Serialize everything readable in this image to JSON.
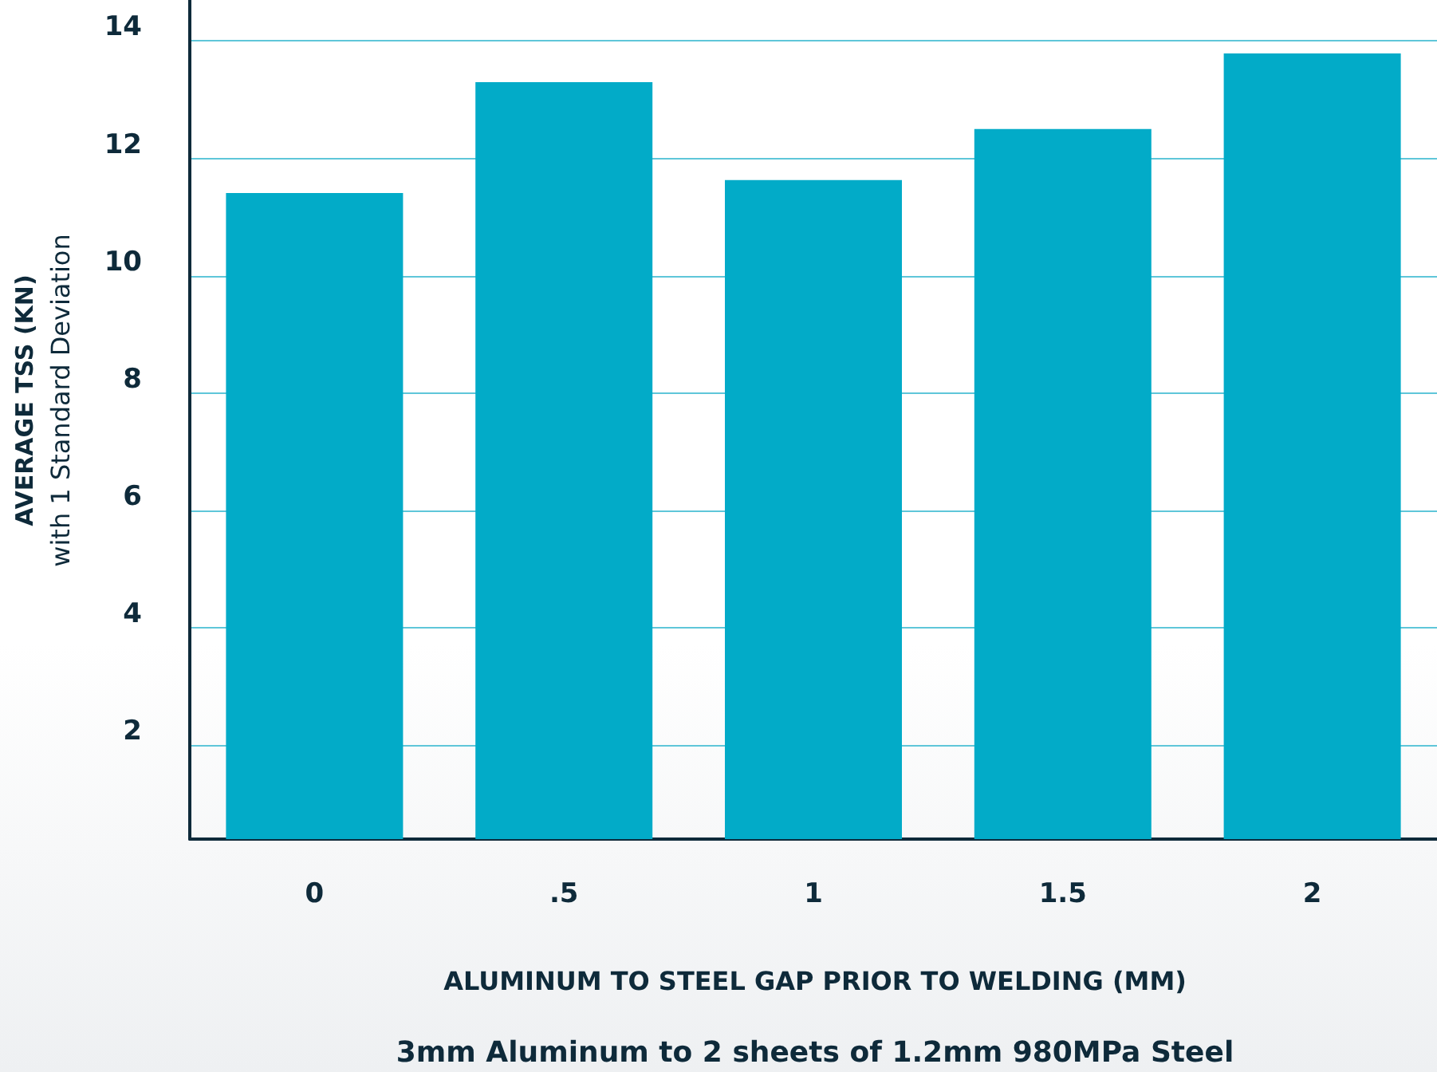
{
  "chart_data": {
    "type": "bar",
    "xlabel": "ALUMINUM TO STEEL GAP PRIOR TO WELDING (MM)",
    "ylabel": "AVERAGE TSS (KN)",
    "annotations": [
      "with 1 Standard Deviation",
      "3mm Aluminum to 2 sheets of 1.2mm 980MPa Steel"
    ],
    "categories": [
      "0",
      ".5",
      "1",
      "1.5",
      "2"
    ],
    "values": [
      11.41,
      13.3,
      11.63,
      12.5,
      13.79
    ],
    "color": "#02abc8",
    "ylim": [
      0.4,
      14.7
    ],
    "yticks": [
      2,
      4,
      6,
      8,
      10,
      12,
      14
    ],
    "grid": "y"
  }
}
